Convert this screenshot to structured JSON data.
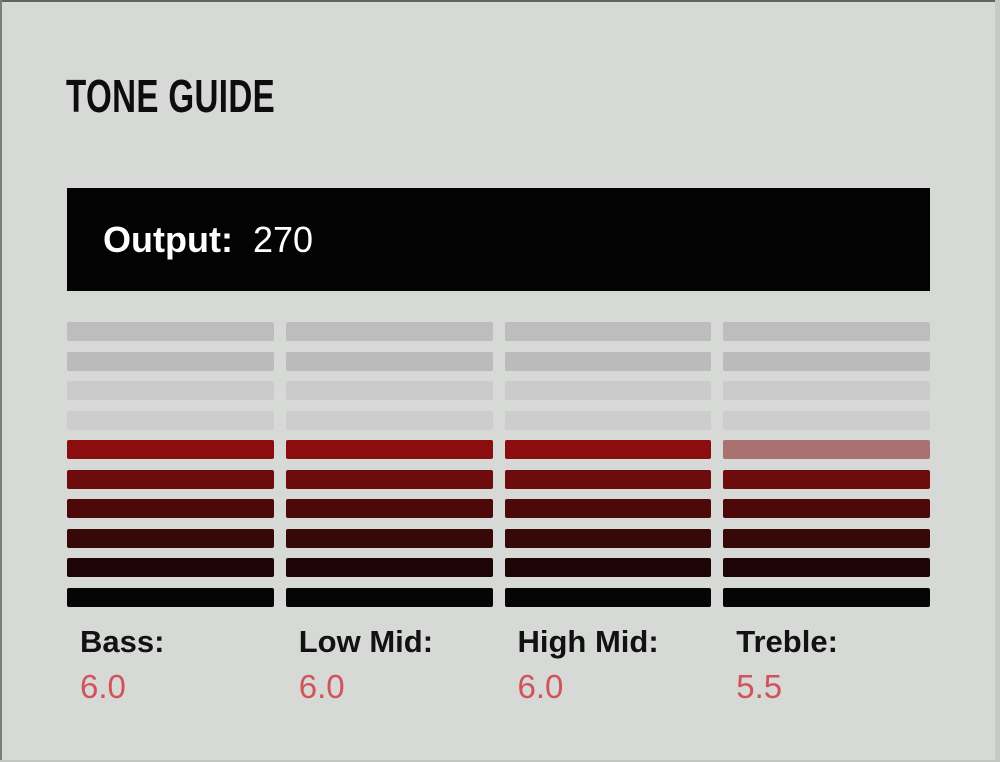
{
  "page": {
    "title": "TONE GUIDE"
  },
  "output": {
    "label": "Output:",
    "value": "270"
  },
  "meters": {
    "segment_count": 10,
    "columns": [
      {
        "id": "bass",
        "label": "Bass:",
        "value": "6.0",
        "segments": [
          "#bdbdbd",
          "#bbbbbb",
          "#cbcbcb",
          "#cdcdcd",
          "#8b0d0d",
          "#6d0c0c",
          "#4d0909",
          "#360808",
          "#1f0505",
          "#050505"
        ]
      },
      {
        "id": "low-mid",
        "label": "Low Mid:",
        "value": "6.0",
        "segments": [
          "#bdbdbd",
          "#bbbbbb",
          "#cbcbcb",
          "#cdcdcd",
          "#8b0d0d",
          "#6d0c0c",
          "#4d0909",
          "#360808",
          "#1f0505",
          "#050505"
        ]
      },
      {
        "id": "high-mid",
        "label": "High Mid:",
        "value": "6.0",
        "segments": [
          "#bdbdbd",
          "#bbbbbb",
          "#cbcbcb",
          "#cdcdcd",
          "#8b0d0d",
          "#6d0c0c",
          "#4d0909",
          "#360808",
          "#1f0505",
          "#050505"
        ]
      },
      {
        "id": "treble",
        "label": "Treble:",
        "value": "5.5",
        "segments": [
          "#bdbdbd",
          "#bbbbbb",
          "#cbcbcb",
          "#cdcdcd",
          "#aa7171",
          "#6d0c0c",
          "#4d0909",
          "#360808",
          "#1f0505",
          "#050505"
        ]
      }
    ]
  },
  "chart_data": {
    "type": "bar",
    "categories": [
      "Bass",
      "Low Mid",
      "High Mid",
      "Treble"
    ],
    "values": [
      6.0,
      6.0,
      6.0,
      5.5
    ],
    "title": "TONE GUIDE",
    "xlabel": "",
    "ylabel": "",
    "ylim": [
      0,
      10
    ],
    "note": "Each column is a 10-segment vertical LED meter; 6 lit segments = 6.0, half-intensity top segment = 0.5 step"
  },
  "colors": {
    "background": "#d6d9d6",
    "output_panel": "#030303",
    "output_text": "#ffffff",
    "title_text": "#0d0d0d",
    "value_text": "#d0545a"
  }
}
